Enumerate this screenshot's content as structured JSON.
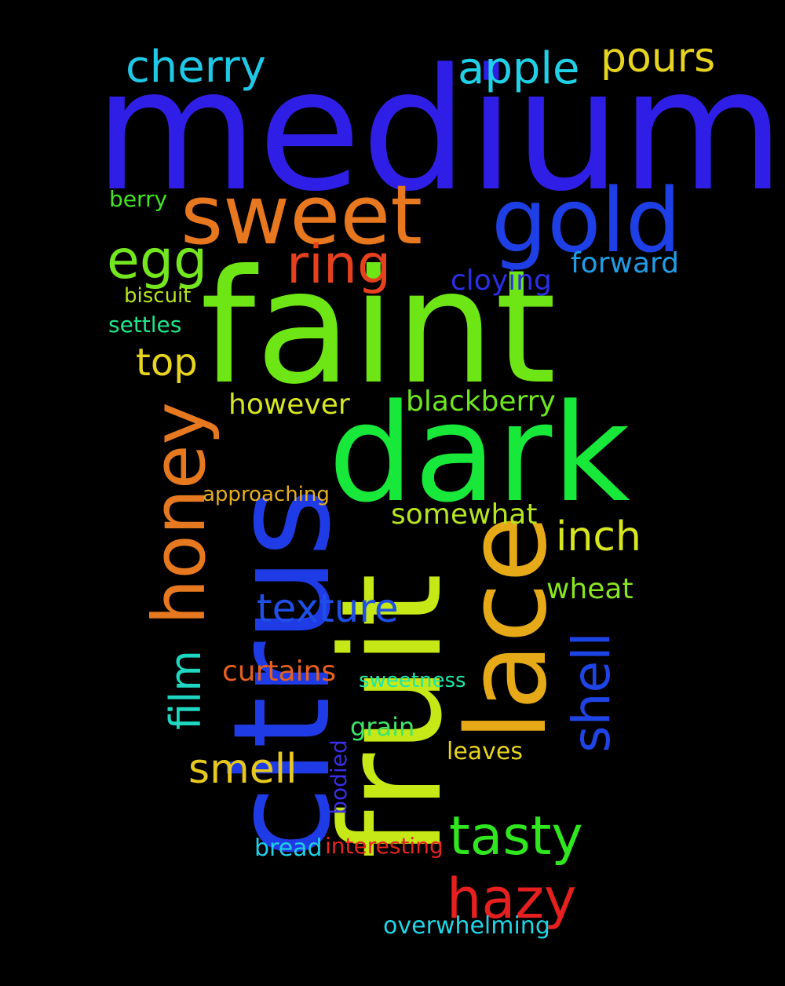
{
  "background": "#000000",
  "words": [
    {
      "text": "medium",
      "color": "#2f1fe6",
      "orientation": "horizontal"
    },
    {
      "text": "faint",
      "color": "#6ee616",
      "orientation": "horizontal"
    },
    {
      "text": "dark",
      "color": "#17e83a",
      "orientation": "horizontal"
    },
    {
      "text": "citrus",
      "color": "#1f3be6",
      "orientation": "vertical"
    },
    {
      "text": "fruit",
      "color": "#c5e816",
      "orientation": "vertical"
    },
    {
      "text": "lace",
      "color": "#e6aa18",
      "orientation": "vertical"
    },
    {
      "text": "sweet",
      "color": "#e8781f",
      "orientation": "horizontal"
    },
    {
      "text": "gold",
      "color": "#1f3fe6",
      "orientation": "horizontal"
    },
    {
      "text": "honey",
      "color": "#e6791f",
      "orientation": "vertical"
    },
    {
      "text": "cherry",
      "color": "#1fc8e6",
      "orientation": "horizontal"
    },
    {
      "text": "apple",
      "color": "#1fd0e6",
      "orientation": "horizontal"
    },
    {
      "text": "pours",
      "color": "#e6d41f",
      "orientation": "horizontal"
    },
    {
      "text": "egg",
      "color": "#74e61f",
      "orientation": "horizontal"
    },
    {
      "text": "ring",
      "color": "#e6401f",
      "orientation": "horizontal"
    },
    {
      "text": "forward",
      "color": "#1f9ee6",
      "orientation": "horizontal"
    },
    {
      "text": "cloying",
      "color": "#2b2fe6",
      "orientation": "horizontal"
    },
    {
      "text": "berry",
      "color": "#3fe61f",
      "orientation": "horizontal"
    },
    {
      "text": "biscuit",
      "color": "#b6e61f",
      "orientation": "horizontal"
    },
    {
      "text": "settles",
      "color": "#1fe68a",
      "orientation": "horizontal"
    },
    {
      "text": "top",
      "color": "#e6d41f",
      "orientation": "horizontal"
    },
    {
      "text": "however",
      "color": "#d8e61f",
      "orientation": "horizontal"
    },
    {
      "text": "blackberry",
      "color": "#6ee61f",
      "orientation": "horizontal"
    },
    {
      "text": "approaching",
      "color": "#e6b01f",
      "orientation": "horizontal"
    },
    {
      "text": "somewhat",
      "color": "#b6e61f",
      "orientation": "horizontal"
    },
    {
      "text": "inch",
      "color": "#d8e61f",
      "orientation": "horizontal"
    },
    {
      "text": "wheat",
      "color": "#8ae61f",
      "orientation": "horizontal"
    },
    {
      "text": "texture",
      "color": "#1f4fe6",
      "orientation": "horizontal"
    },
    {
      "text": "shell",
      "color": "#1f44e6",
      "orientation": "vertical"
    },
    {
      "text": "film",
      "color": "#1fd6c0",
      "orientation": "vertical"
    },
    {
      "text": "curtains",
      "color": "#e6601f",
      "orientation": "horizontal"
    },
    {
      "text": "sweetness",
      "color": "#1fe6a8",
      "orientation": "horizontal"
    },
    {
      "text": "grain",
      "color": "#3fe66a",
      "orientation": "horizontal"
    },
    {
      "text": "leaves",
      "color": "#e6d41f",
      "orientation": "horizontal"
    },
    {
      "text": "smell",
      "color": "#e6c81f",
      "orientation": "horizontal"
    },
    {
      "text": "bodied",
      "color": "#3a2fe6",
      "orientation": "vertical"
    },
    {
      "text": "tasty",
      "color": "#2fe61f",
      "orientation": "horizontal"
    },
    {
      "text": "bread",
      "color": "#1fcfe6",
      "orientation": "horizontal"
    },
    {
      "text": "interesting",
      "color": "#e6251f",
      "orientation": "horizontal"
    },
    {
      "text": "hazy",
      "color": "#e6201f",
      "orientation": "horizontal"
    },
    {
      "text": "overwhelming",
      "color": "#1fd6e6",
      "orientation": "horizontal"
    }
  ]
}
